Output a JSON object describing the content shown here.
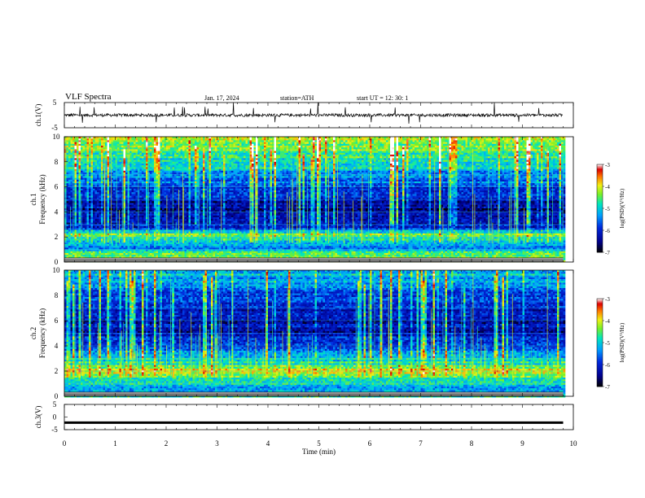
{
  "header": {
    "title": "VLF  Spectra",
    "date": "Jan. 17, 2024",
    "station": "station=ATH",
    "start": "start  UT  =    12: 30: 1"
  },
  "chart_data": [
    {
      "type": "line",
      "panel": "ch1-waveform",
      "ylabel": "ch.1(V)",
      "ylim": [
        -5,
        5
      ],
      "y_ticks": [
        "5",
        "-5"
      ],
      "xlim": [
        0,
        10
      ],
      "x_unit": "min",
      "series": [
        {
          "baseline": 0,
          "typical_noise": 0.6,
          "spikes_up": [
            2.8,
            3.1,
            3.3,
            7.1,
            7.4,
            3.0,
            2.6
          ],
          "spikes_down": [
            -2.8,
            -3.4,
            -3.0,
            -2.6,
            -3.6
          ]
        }
      ]
    },
    {
      "type": "heatmap",
      "panel": "ch1-spectrogram",
      "ylabel": "ch.1\nFrequency  (kHz)",
      "xlim": [
        0,
        10
      ],
      "ylim": [
        0,
        10
      ],
      "y_ticks": [
        "10",
        "8",
        "6",
        "4",
        "2",
        "0"
      ],
      "z_range": [
        -7,
        -3
      ],
      "z_label": "log(PSD)(V²/Hz)",
      "data_end_min": 9.8,
      "profile_khz": [
        [
          0,
          -4.2
        ],
        [
          0.3,
          -4.6
        ],
        [
          0.8,
          -4.4
        ],
        [
          1.2,
          -5.6
        ],
        [
          1.9,
          -5.0
        ],
        [
          2.2,
          -4.3
        ],
        [
          2.6,
          -5.8
        ],
        [
          3.2,
          -6.3
        ],
        [
          4.0,
          -6.5
        ],
        [
          5.0,
          -6.2
        ],
        [
          6.0,
          -5.8
        ],
        [
          7.0,
          -5.3
        ],
        [
          8.0,
          -4.8
        ],
        [
          9.0,
          -4.4
        ],
        [
          10.0,
          -4.1
        ]
      ],
      "lines_khz": [
        1.0,
        2.0,
        3.0,
        4.0,
        5.0,
        6.0,
        7.0
      ]
    },
    {
      "type": "heatmap",
      "panel": "ch2-spectrogram",
      "ylabel": "ch.2\nFrequency  (kHz)",
      "xlim": [
        0,
        10
      ],
      "ylim": [
        0,
        10
      ],
      "y_ticks": [
        "10",
        "8",
        "6",
        "4",
        "2",
        "0"
      ],
      "z_range": [
        -7,
        -3
      ],
      "z_label": "log(PSD)(V²/Hz)",
      "data_end_min": 9.8,
      "profile_khz": [
        [
          0,
          -4.8
        ],
        [
          0.4,
          -5.4
        ],
        [
          1.0,
          -5.0
        ],
        [
          1.6,
          -4.6
        ],
        [
          2.0,
          -3.8
        ],
        [
          2.4,
          -4.6
        ],
        [
          3.0,
          -5.0
        ],
        [
          3.5,
          -5.4
        ],
        [
          4.0,
          -5.8
        ],
        [
          5.0,
          -6.2
        ],
        [
          6.0,
          -6.3
        ],
        [
          7.0,
          -6.1
        ],
        [
          8.0,
          -5.8
        ],
        [
          9.0,
          -5.4
        ],
        [
          10.0,
          -5.0
        ]
      ],
      "lines_khz": [
        1.0,
        2.0,
        3.0,
        4.0,
        5.0,
        6.0,
        7.0
      ]
    },
    {
      "type": "line",
      "panel": "ch3-waveform",
      "ylabel": "ch.3(V)",
      "ylim": [
        -5,
        5
      ],
      "y_ticks": [
        "5",
        "0",
        "-5"
      ],
      "xlim": [
        0,
        10
      ],
      "xlabel": "Time  (min)",
      "x_ticks": [
        "0",
        "1",
        "2",
        "3",
        "4",
        "5",
        "6",
        "7",
        "8",
        "9",
        "10"
      ],
      "series": [
        {
          "baseline": -2.2
        }
      ]
    }
  ],
  "colorbars": [
    {
      "ticks": [
        "-3",
        "-4",
        "-5",
        "-6",
        "-7"
      ],
      "label": "log(PSD)(V²/Hz)"
    },
    {
      "ticks": [
        "-3",
        "-4",
        "-5",
        "-6",
        "-7"
      ],
      "label": "log(PSD)(V²/Hz)"
    }
  ]
}
